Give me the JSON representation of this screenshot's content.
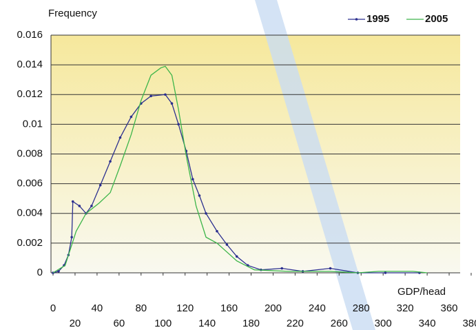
{
  "chart_data": {
    "type": "line",
    "ylabel": "Frequency",
    "xlabel": "GDP/head",
    "xlim": [
      0,
      370
    ],
    "ylim": [
      0,
      0.016
    ],
    "xticks": [
      0,
      20,
      40,
      60,
      80,
      100,
      120,
      140,
      160,
      180,
      200,
      220,
      240,
      260,
      280,
      300,
      320,
      340,
      360,
      380
    ],
    "yticks": [
      0,
      0.002,
      0.004,
      0.006,
      0.008,
      0.01,
      0.012,
      0.014,
      0.016
    ],
    "grid": true,
    "legend": "top-right",
    "series": [
      {
        "name": "1995",
        "color": "#2b2f8f",
        "markers": true,
        "x": [
          0,
          5,
          10,
          14,
          17,
          18,
          24,
          30,
          35,
          43,
          52,
          61,
          71,
          80,
          89,
          102,
          108,
          114,
          121,
          127,
          133,
          139,
          149,
          158,
          167,
          177,
          189,
          208,
          227,
          252,
          277,
          302,
          333
        ],
        "values": [
          0,
          0.0001,
          0.0005,
          0.0012,
          0.0024,
          0.0048,
          0.0045,
          0.004,
          0.0045,
          0.0059,
          0.0075,
          0.0091,
          0.0105,
          0.0114,
          0.0119,
          0.012,
          0.0114,
          0.01,
          0.0082,
          0.0063,
          0.0052,
          0.004,
          0.0028,
          0.0019,
          0.0011,
          0.0005,
          0.0002,
          0.0003,
          0.0001,
          0.0003,
          0,
          0,
          0
        ]
      },
      {
        "name": "2005",
        "color": "#3cb54a",
        "markers": false,
        "x": [
          0,
          11,
          21,
          30,
          42,
          52,
          61,
          71,
          80,
          89,
          98,
          102,
          108,
          114,
          121,
          130,
          139,
          149,
          158,
          167,
          183,
          214,
          252,
          277,
          296,
          311,
          327,
          340
        ],
        "values": [
          0,
          0.0005,
          0.0028,
          0.004,
          0.0047,
          0.0054,
          0.0072,
          0.0093,
          0.0116,
          0.0133,
          0.0138,
          0.0139,
          0.0133,
          0.011,
          0.0079,
          0.0045,
          0.0024,
          0.002,
          0.0014,
          0.0008,
          0.0002,
          0.0001,
          0.0001,
          0,
          0.0001,
          0.0001,
          0.0001,
          0
        ]
      }
    ]
  }
}
